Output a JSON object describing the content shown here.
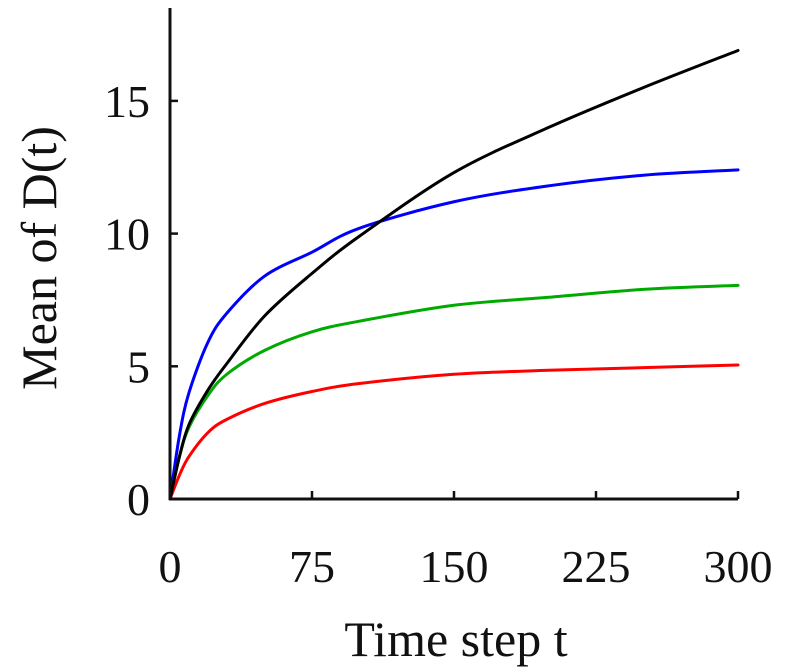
{
  "chart_data": {
    "type": "line",
    "xlabel": "Time step t",
    "ylabel": "Mean of D(t)",
    "xlim": [
      0,
      300
    ],
    "ylim": [
      0,
      18.5
    ],
    "x_ticks": [
      0,
      75,
      150,
      225,
      300
    ],
    "x_tick_labels": [
      "0",
      "75",
      "150",
      "225",
      "300"
    ],
    "y_ticks": [
      0,
      5,
      10,
      15
    ],
    "y_tick_labels": [
      "0",
      "5",
      "10",
      "15"
    ],
    "grid": false,
    "legend": "none",
    "x": [
      0,
      5,
      10,
      20,
      30,
      50,
      75,
      100,
      150,
      200,
      250,
      300
    ],
    "series": [
      {
        "color": "#000000",
        "values": [
          0,
          1.6,
          2.8,
          4.1,
          5.1,
          6.9,
          8.5,
          9.9,
          12.3,
          14.0,
          15.5,
          16.9
        ]
      },
      {
        "color": "#0000ff",
        "values": [
          0,
          2.4,
          4.0,
          5.9,
          7.0,
          8.4,
          9.3,
          10.2,
          11.2,
          11.8,
          12.2,
          12.4
        ]
      },
      {
        "color": "#00aa00",
        "values": [
          0,
          1.6,
          2.7,
          3.9,
          4.7,
          5.6,
          6.3,
          6.7,
          7.3,
          7.6,
          7.9,
          8.05
        ]
      },
      {
        "color": "#ff0000",
        "values": [
          0,
          0.9,
          1.6,
          2.5,
          3.0,
          3.6,
          4.05,
          4.35,
          4.7,
          4.85,
          4.95,
          5.05
        ]
      }
    ]
  }
}
